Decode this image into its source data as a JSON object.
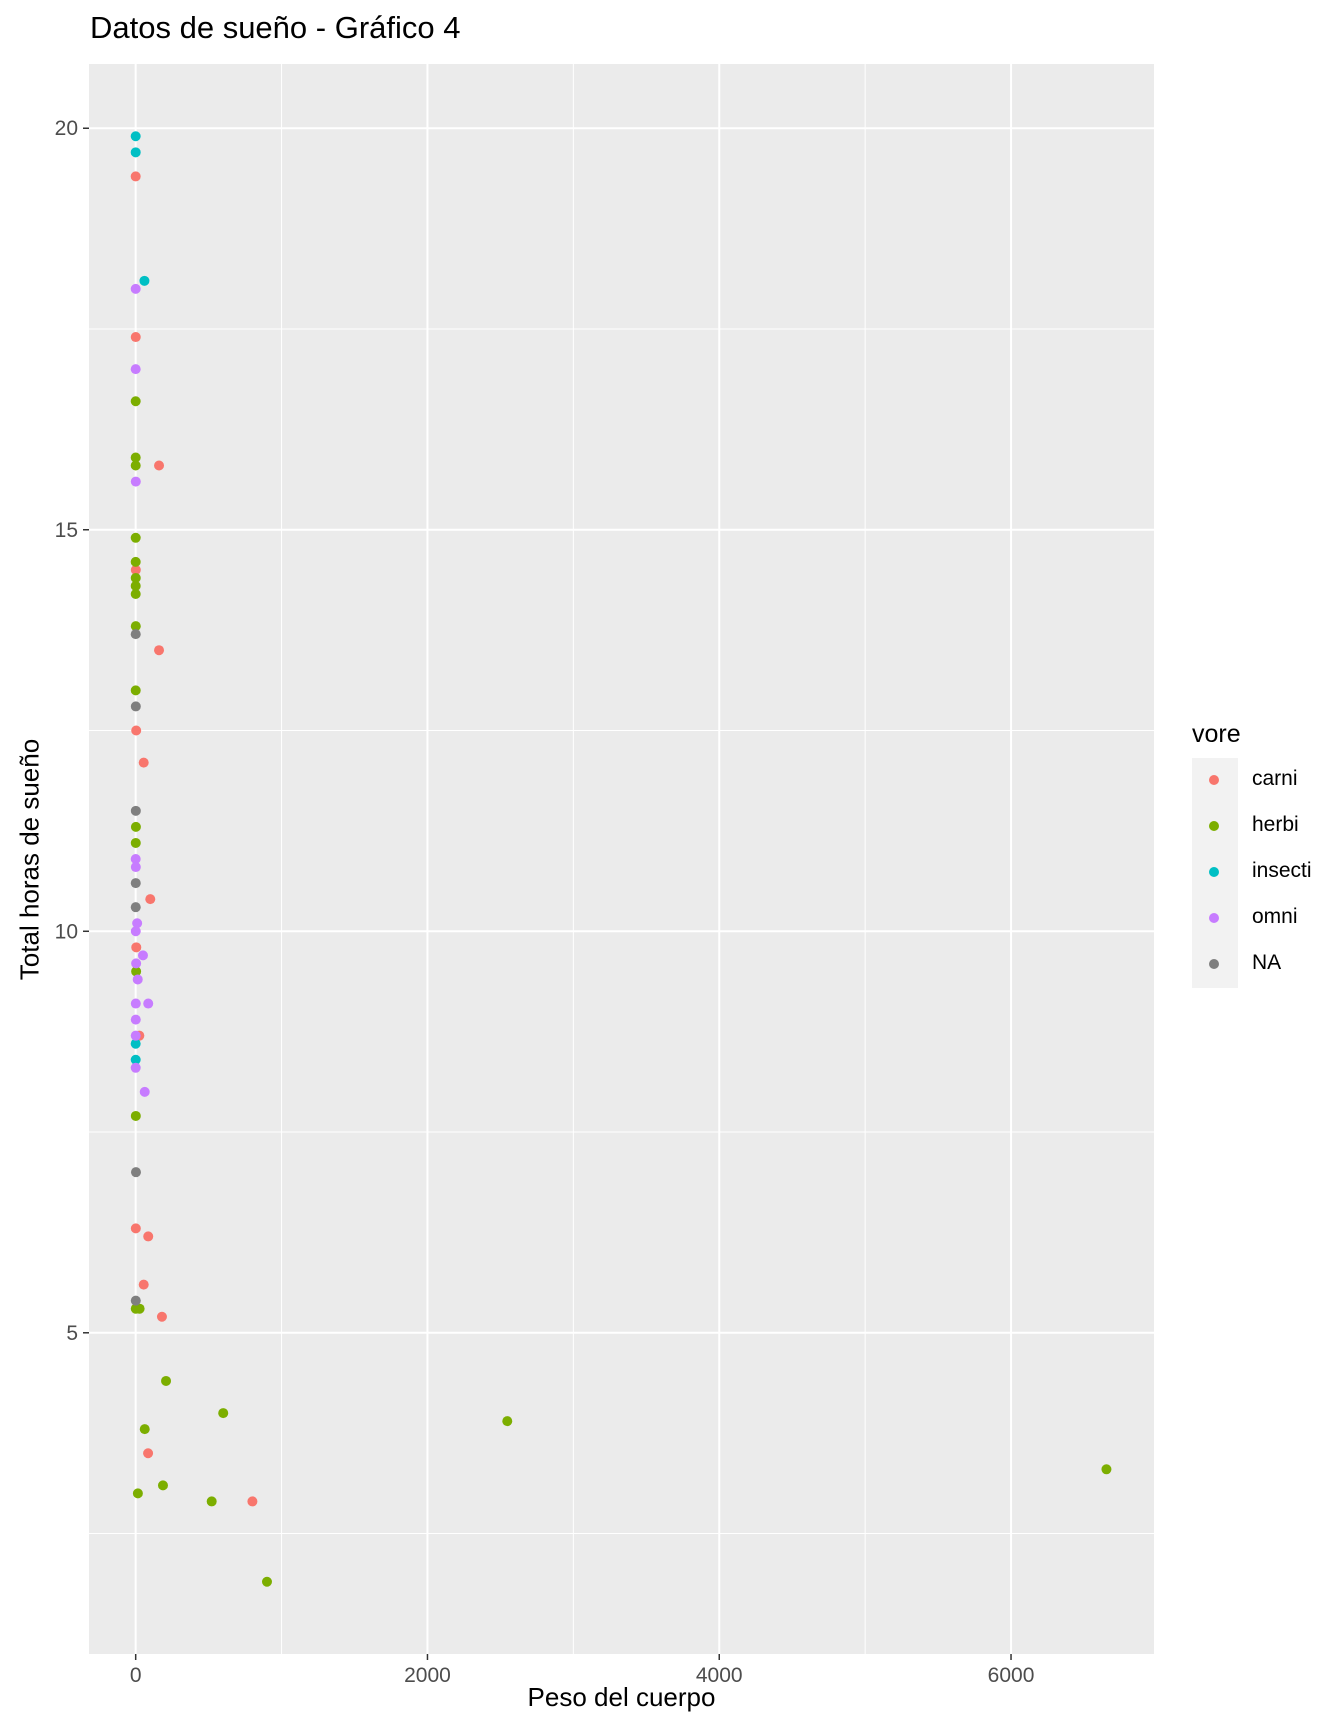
{
  "chart_data": {
    "type": "scatter",
    "title": "Datos de sueño - Gráfico 4",
    "xlabel": "Peso del cuerpo",
    "ylabel": "Total horas de sueño",
    "xlim": [
      -320,
      6980
    ],
    "ylim": [
      1.0,
      20.8
    ],
    "x_ticks": [
      0,
      2000,
      4000,
      6000
    ],
    "x_tick_labels": [
      "0",
      "2000",
      "4000",
      "6000"
    ],
    "y_ticks": [
      5,
      10,
      15,
      20
    ],
    "y_tick_labels": [
      "5",
      "10",
      "15",
      "20"
    ],
    "grid": true,
    "legend": {
      "title": "vore",
      "placement": "right"
    },
    "series": [
      {
        "name": "carni",
        "color": "#F8766D",
        "points": [
          [
            0.02,
            19.4
          ],
          [
            0.5,
            17.4
          ],
          [
            160,
            15.8
          ],
          [
            0.9,
            14.5
          ],
          [
            160,
            13.5
          ],
          [
            3.5,
            12.5
          ],
          [
            55,
            12.1
          ],
          [
            100,
            10.4
          ],
          [
            4,
            9.8
          ],
          [
            25,
            8.7
          ],
          [
            0.9,
            6.3
          ],
          [
            86,
            6.2
          ],
          [
            55,
            5.6
          ],
          [
            180,
            5.2
          ],
          [
            85,
            3.5
          ],
          [
            800,
            2.9
          ]
        ]
      },
      {
        "name": "herbi",
        "color": "#7CAE00",
        "points": [
          [
            0.04,
            16.6
          ],
          [
            0.03,
            15.9
          ],
          [
            0.12,
            15.8
          ],
          [
            0.2,
            14.9
          ],
          [
            0.1,
            14.6
          ],
          [
            0.4,
            14.4
          ],
          [
            0.05,
            14.3
          ],
          [
            0.15,
            14.2
          ],
          [
            0.7,
            13.8
          ],
          [
            0.22,
            13.0
          ],
          [
            1.6,
            11.3
          ],
          [
            0.6,
            11.1
          ],
          [
            3.0,
            9.5
          ],
          [
            0.9,
            7.7
          ],
          [
            0.5,
            5.3
          ],
          [
            27,
            5.3
          ],
          [
            208,
            4.4
          ],
          [
            600,
            4.0
          ],
          [
            2547,
            3.9
          ],
          [
            62,
            3.8
          ],
          [
            6654,
            3.3
          ],
          [
            187,
            3.1
          ],
          [
            15,
            3.0
          ],
          [
            521,
            2.9
          ],
          [
            900,
            1.9
          ]
        ]
      },
      {
        "name": "insecti",
        "color": "#00BFC4",
        "points": [
          [
            0.02,
            19.9
          ],
          [
            0.1,
            19.7
          ],
          [
            60,
            18.1
          ],
          [
            0.01,
            8.6
          ],
          [
            0.07,
            8.4
          ]
        ]
      },
      {
        "name": "omni",
        "color": "#C77CFF",
        "points": [
          [
            0.01,
            18.0
          ],
          [
            0.02,
            17.0
          ],
          [
            0.75,
            15.6
          ],
          [
            0.1,
            10.9
          ],
          [
            1.0,
            10.8
          ],
          [
            10,
            10.1
          ],
          [
            0.5,
            10.0
          ],
          [
            50,
            9.7
          ],
          [
            3.0,
            9.6
          ],
          [
            14,
            9.4
          ],
          [
            86,
            9.1
          ],
          [
            0.8,
            9.1
          ],
          [
            0.6,
            8.9
          ],
          [
            0.3,
            8.7
          ],
          [
            0.1,
            8.3
          ],
          [
            62,
            8.0
          ]
        ]
      },
      {
        "name": "NA",
        "color": "#7F7F7F",
        "points": [
          [
            0.2,
            13.7
          ],
          [
            0.9,
            12.8
          ],
          [
            1.0,
            11.5
          ],
          [
            0.5,
            10.6
          ],
          [
            0.3,
            10.3
          ],
          [
            2.0,
            7.0
          ],
          [
            0.7,
            5.4
          ]
        ]
      }
    ]
  }
}
